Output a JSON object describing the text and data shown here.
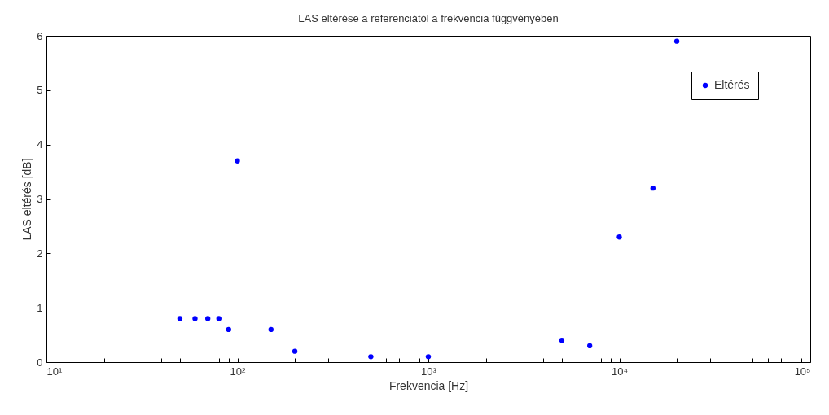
{
  "chart_data": {
    "type": "scatter",
    "title": "LAS eltérése a referenciától a frekvencia függvényében",
    "xlabel": "Frekvencia [Hz]",
    "ylabel": "LAS eltérés [dB]",
    "log": "x",
    "xlim": [
      10,
      100000
    ],
    "ylim": [
      0,
      6
    ],
    "xticks": [
      {
        "value": 10,
        "label": "10¹"
      },
      {
        "value": 20,
        "label": null
      },
      {
        "value": 30,
        "label": null
      },
      {
        "value": 40,
        "label": null
      },
      {
        "value": 50,
        "label": null
      },
      {
        "value": 60,
        "label": null
      },
      {
        "value": 70,
        "label": null
      },
      {
        "value": 80,
        "label": null
      },
      {
        "value": 90,
        "label": null
      },
      {
        "value": 100,
        "label": "10²"
      },
      {
        "value": 200,
        "label": null
      },
      {
        "value": 300,
        "label": null
      },
      {
        "value": 400,
        "label": null
      },
      {
        "value": 500,
        "label": null
      },
      {
        "value": 600,
        "label": null
      },
      {
        "value": 700,
        "label": null
      },
      {
        "value": 800,
        "label": null
      },
      {
        "value": 900,
        "label": null
      },
      {
        "value": 1000,
        "label": "10³"
      },
      {
        "value": 2000,
        "label": null
      },
      {
        "value": 3000,
        "label": null
      },
      {
        "value": 4000,
        "label": null
      },
      {
        "value": 5000,
        "label": null
      },
      {
        "value": 6000,
        "label": null
      },
      {
        "value": 7000,
        "label": null
      },
      {
        "value": 8000,
        "label": null
      },
      {
        "value": 9000,
        "label": null
      },
      {
        "value": 10000,
        "label": "10⁴"
      },
      {
        "value": 20000,
        "label": null
      },
      {
        "value": 30000,
        "label": null
      },
      {
        "value": 40000,
        "label": null
      },
      {
        "value": 50000,
        "label": null
      },
      {
        "value": 60000,
        "label": null
      },
      {
        "value": 70000,
        "label": null
      },
      {
        "value": 80000,
        "label": null
      },
      {
        "value": 90000,
        "label": null
      },
      {
        "value": 100000,
        "label": "10⁵"
      }
    ],
    "yticks": [
      0,
      1,
      2,
      3,
      4,
      5,
      6
    ],
    "grid": false,
    "legend": "top right",
    "marker": "circle",
    "series": [
      {
        "name": "Eltérés",
        "color": "#0000ff",
        "x": [
          50,
          60,
          70,
          80,
          90,
          100,
          150,
          200,
          500,
          1000,
          5000,
          7000,
          10000,
          15000,
          20000
        ],
        "values": [
          0.8,
          0.8,
          0.8,
          0.8,
          0.6,
          3.7,
          0.6,
          0.2,
          0.1,
          0.1,
          0.4,
          0.3,
          2.3,
          3.2,
          5.9
        ]
      }
    ]
  }
}
